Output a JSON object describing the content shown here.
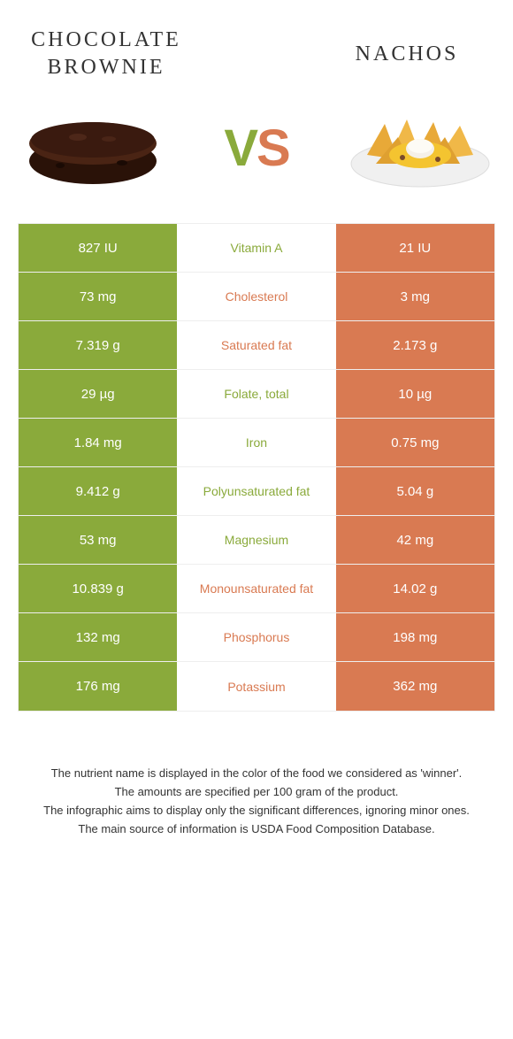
{
  "header": {
    "left_title": "CHOCOLATE BROWNIE",
    "right_title": "NACHOS",
    "vs_v": "V",
    "vs_s": "S"
  },
  "colors": {
    "green": "#8aaa3b",
    "orange": "#d97a52",
    "brownie_top": "#3a1a0f",
    "brownie_body": "#2a1208",
    "nachos_chip": "#e8a938",
    "nachos_cheese": "#f4c430",
    "nachos_cream": "#f5f0e8",
    "plate": "#ffffff"
  },
  "nutrients": [
    {
      "label": "Vitamin A",
      "left": "827 IU",
      "right": "21 IU",
      "winner": "left"
    },
    {
      "label": "Cholesterol",
      "left": "73 mg",
      "right": "3 mg",
      "winner": "right"
    },
    {
      "label": "Saturated fat",
      "left": "7.319 g",
      "right": "2.173 g",
      "winner": "right"
    },
    {
      "label": "Folate, total",
      "left": "29 µg",
      "right": "10 µg",
      "winner": "left"
    },
    {
      "label": "Iron",
      "left": "1.84 mg",
      "right": "0.75 mg",
      "winner": "left"
    },
    {
      "label": "Polyunsaturated fat",
      "left": "9.412 g",
      "right": "5.04 g",
      "winner": "left"
    },
    {
      "label": "Magnesium",
      "left": "53 mg",
      "right": "42 mg",
      "winner": "left"
    },
    {
      "label": "Monounsaturated fat",
      "left": "10.839 g",
      "right": "14.02 g",
      "winner": "right"
    },
    {
      "label": "Phosphorus",
      "left": "132 mg",
      "right": "198 mg",
      "winner": "right"
    },
    {
      "label": "Potassium",
      "left": "176 mg",
      "right": "362 mg",
      "winner": "right"
    }
  ],
  "footer": {
    "line1": "The nutrient name is displayed in the color of the food we considered as 'winner'.",
    "line2": "The amounts are specified per 100 gram of the product.",
    "line3": "The infographic aims to display only the significant differences, ignoring minor ones.",
    "line4": "The main source of information is USDA Food Composition Database."
  }
}
